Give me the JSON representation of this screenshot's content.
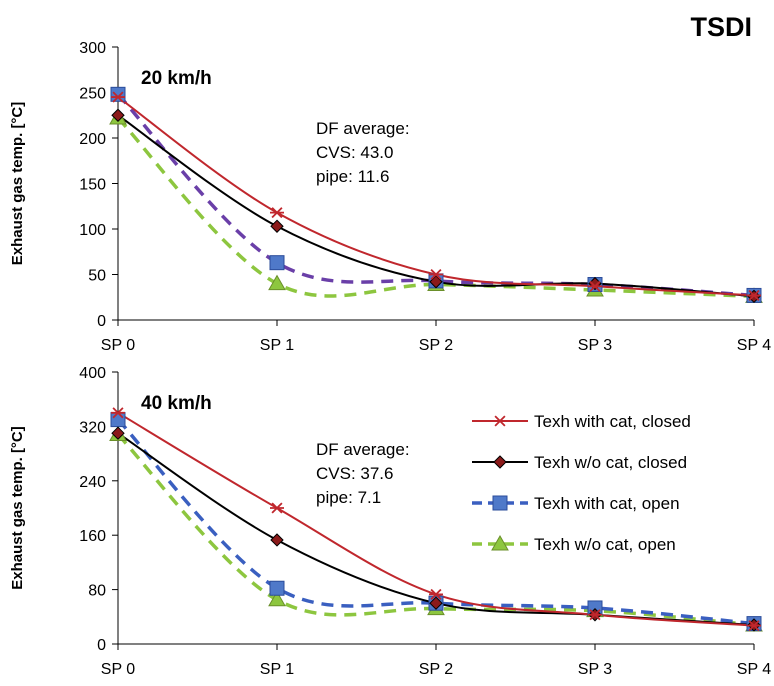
{
  "chart_data": {
    "title": "TSDI",
    "series_styles": [
      {
        "color": "#c0272d",
        "dash": "solid",
        "marker": "asterisk",
        "marker_fill": "#c0272d"
      },
      {
        "color": "#000000",
        "dash": "solid",
        "marker": "diamond",
        "marker_fill": "#8b1a1a"
      },
      {
        "color": "#3a5fc0",
        "dash": "dashed",
        "marker": "square",
        "marker_fill": "#4f79c9"
      },
      {
        "color": "#8dc63f",
        "dash": "dashed",
        "marker": "triangle",
        "marker_fill": "#8dc63f"
      }
    ],
    "legend": {
      "placement": "right",
      "entries": [
        "Texh with cat, closed",
        "Texh w/o cat, closed",
        "Texh with cat, open",
        "Texh w/o cat, open"
      ]
    },
    "panels": [
      {
        "type": "line",
        "label": "20 km/h",
        "categories": [
          "SP 0",
          "SP 1",
          "SP 2",
          "SP 3",
          "SP 4"
        ],
        "ylabel": "Exhaust gas temp. [°C]",
        "ylim": [
          0,
          300
        ],
        "yticks": [
          "0",
          "50",
          "100",
          "150",
          "200",
          "250",
          "300"
        ],
        "annotation": [
          "DF average:",
          "CVS: 43.0",
          "pipe: 11.6"
        ],
        "series_colors": [
          "#c0272d",
          "#000000",
          "#6a3fa8",
          "#8dc63f"
        ],
        "series": [
          {
            "name": "Texh with cat, closed",
            "values": [
              245,
              118,
              50,
              37,
              27
            ]
          },
          {
            "name": "Texh w/o cat, closed",
            "values": [
              225,
              103,
              42,
              40,
              26
            ]
          },
          {
            "name": "Texh with cat, open",
            "values": [
              248,
              63,
              43,
              39,
              27
            ]
          },
          {
            "name": "Texh w/o cat, open",
            "values": [
              222,
              40,
              39,
              33,
              26
            ]
          }
        ]
      },
      {
        "type": "line",
        "label": "40 km/h",
        "categories": [
          "SP 0",
          "SP 1",
          "SP 2",
          "SP 3",
          "SP 4"
        ],
        "ylabel": "Exhaust gas temp. [°C]",
        "ylim": [
          0,
          400
        ],
        "yticks": [
          "0",
          "80",
          "160",
          "240",
          "320",
          "400"
        ],
        "annotation": [
          "DF average:",
          "CVS: 37.6",
          "pipe: 7.1"
        ],
        "series_colors": [
          "#c0272d",
          "#000000",
          "#3a5fc0",
          "#8dc63f"
        ],
        "series": [
          {
            "name": "Texh with cat, closed",
            "values": [
              340,
              200,
              73,
              43,
              27
            ]
          },
          {
            "name": "Texh w/o cat, closed",
            "values": [
              310,
              153,
              60,
              43,
              28
            ]
          },
          {
            "name": "Texh with cat, open",
            "values": [
              330,
              82,
              60,
              53,
              30
            ]
          },
          {
            "name": "Texh w/o cat, open",
            "values": [
              308,
              65,
              52,
              49,
              28
            ]
          }
        ]
      }
    ]
  }
}
